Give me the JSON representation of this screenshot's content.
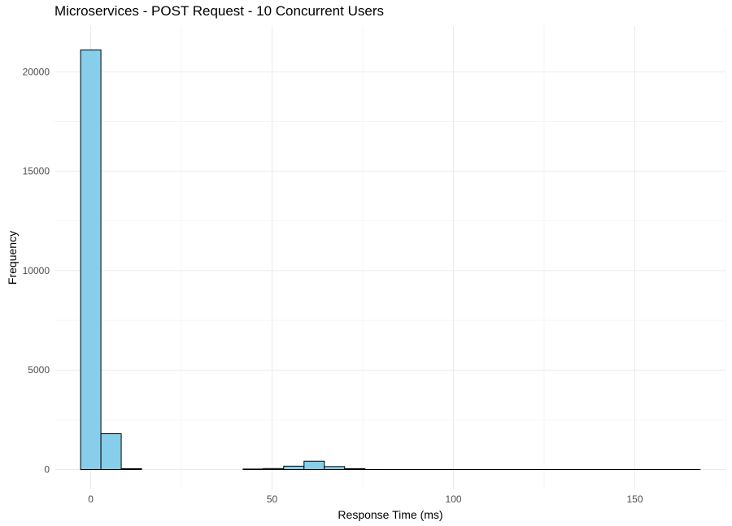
{
  "chart_data": {
    "type": "bar",
    "subtype": "histogram",
    "title": "Microservices - POST Request - 10 Concurrent Users",
    "xlabel": "Response Time (ms)",
    "ylabel": "Frequency",
    "xlim": [
      -10,
      175
    ],
    "ylim": [
      -1000,
      22300
    ],
    "x_ticks": [
      0,
      50,
      100,
      150
    ],
    "y_ticks": [
      0,
      5000,
      10000,
      15000,
      20000
    ],
    "bin_width": 5.6,
    "bins": [
      {
        "x0": -2.8,
        "x1": 2.8,
        "count": 21100
      },
      {
        "x0": 2.8,
        "x1": 8.4,
        "count": 1800
      },
      {
        "x0": 8.4,
        "x1": 14.0,
        "count": 40
      },
      {
        "x0": 14.0,
        "x1": 19.6,
        "count": 0
      },
      {
        "x0": 19.6,
        "x1": 25.2,
        "count": 0
      },
      {
        "x0": 25.2,
        "x1": 30.8,
        "count": 0
      },
      {
        "x0": 30.8,
        "x1": 36.4,
        "count": 0
      },
      {
        "x0": 36.4,
        "x1": 42.0,
        "count": 0
      },
      {
        "x0": 42.0,
        "x1": 47.6,
        "count": 25
      },
      {
        "x0": 47.6,
        "x1": 53.2,
        "count": 50
      },
      {
        "x0": 53.2,
        "x1": 58.8,
        "count": 170
      },
      {
        "x0": 58.8,
        "x1": 64.4,
        "count": 420
      },
      {
        "x0": 64.4,
        "x1": 70.0,
        "count": 150
      },
      {
        "x0": 70.0,
        "x1": 75.6,
        "count": 40
      },
      {
        "x0": 75.6,
        "x1": 81.2,
        "count": 5
      },
      {
        "x0": 81.2,
        "x1": 86.8,
        "count": 2
      },
      {
        "x0": 86.8,
        "x1": 92.4,
        "count": 2
      },
      {
        "x0": 92.4,
        "x1": 98.0,
        "count": 1
      },
      {
        "x0": 98.0,
        "x1": 103.6,
        "count": 1
      },
      {
        "x0": 103.6,
        "x1": 109.2,
        "count": 1
      },
      {
        "x0": 109.2,
        "x1": 114.8,
        "count": 1
      },
      {
        "x0": 114.8,
        "x1": 120.4,
        "count": 1
      },
      {
        "x0": 120.4,
        "x1": 126.0,
        "count": 1
      },
      {
        "x0": 126.0,
        "x1": 131.6,
        "count": 1
      },
      {
        "x0": 131.6,
        "x1": 137.2,
        "count": 1
      },
      {
        "x0": 137.2,
        "x1": 142.8,
        "count": 1
      },
      {
        "x0": 142.8,
        "x1": 148.4,
        "count": 1
      },
      {
        "x0": 148.4,
        "x1": 154.0,
        "count": 1
      },
      {
        "x0": 154.0,
        "x1": 159.6,
        "count": 1
      },
      {
        "x0": 159.6,
        "x1": 165.2,
        "count": 1
      },
      {
        "x0": 165.2,
        "x1": 168.0,
        "count": 1
      }
    ],
    "bar_fill": "#87CEEB",
    "bar_stroke": "#000000",
    "grid": true,
    "grid_major_color": "#EBEBEB",
    "grid_minor_color": "#F3F3F3",
    "legend": "none"
  }
}
